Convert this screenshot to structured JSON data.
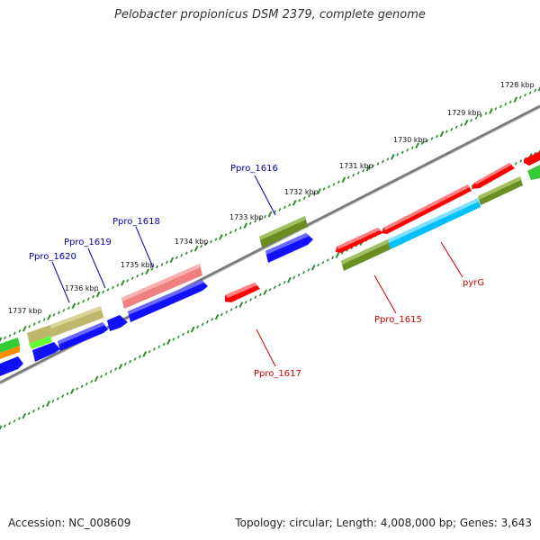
{
  "title": "Pelobacter propionicus DSM 2379, complete genome",
  "accession_text": "Accession: NC_008609",
  "summary_text": "Topology: circular; Length: 4,008,000 bp; Genes: 3,643",
  "colors": {
    "tick": "#2e8b2e",
    "backbone": "#888888",
    "forward_label": "#0000aa",
    "reverse_label": "#cc0000",
    "red": "#ff0000",
    "blue": "#1010ff",
    "olive": "#6b8e23",
    "salmon": "#f08080",
    "khaki": "#bdb76b",
    "cyan": "#00bfff",
    "lime": "#66ff33",
    "orange": "#ff8c00",
    "green": "#33cc33"
  },
  "kbp_labels": [
    "1728 kbp",
    "1729 kbp",
    "1730 kbp",
    "1731 kbp",
    "1732 kbp",
    "1733 kbp",
    "1734 kbp",
    "1735 kbp",
    "1736 kbp",
    "1737 kbp"
  ],
  "forward_gene_labels": [
    "Ppro_1616",
    "Ppro_1618",
    "Ppro_1619",
    "Ppro_1620"
  ],
  "reverse_gene_labels": [
    "Ppro_1615",
    "Ppro_1617",
    "pyrG"
  ]
}
